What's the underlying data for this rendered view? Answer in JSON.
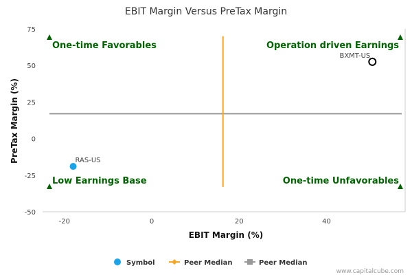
{
  "chart_data": {
    "type": "scatter",
    "title": "EBIT Margin Versus PreTax Margin",
    "xlabel": "EBIT Margin (%)",
    "ylabel": "PreTax Margin (%)",
    "xlim": [
      -25,
      58
    ],
    "ylim": [
      -50,
      75
    ],
    "x_ticks": [
      -20,
      0,
      20,
      40
    ],
    "y_ticks": [
      -50,
      -25,
      0,
      25,
      50,
      75
    ],
    "grid": false,
    "points": [
      {
        "label": "RAS-US",
        "x": -18,
        "y": -19,
        "style": "filled",
        "color": "#1aa3e8"
      },
      {
        "label": "BXMT-US",
        "x": 50.5,
        "y": 52.5,
        "style": "hollow",
        "color": "#000000"
      }
    ],
    "peer_median_x": 16.3,
    "peer_median_y": 17,
    "vline_y_range": [
      -33,
      70
    ],
    "quadrants": {
      "top_left": "One-time Favorables",
      "top_right": "Operation driven Earnings",
      "bottom_left": "Low Earnings Base",
      "bottom_right": "One-time Unfavorables"
    },
    "legend": {
      "placement": "bottom",
      "items": [
        {
          "label": "Symbol",
          "color": "#1aa3e8",
          "marker": "circle"
        },
        {
          "label": "Peer Median",
          "color": "#f5a623",
          "marker": "diamond-line"
        },
        {
          "label": "Peer Median",
          "color": "#999999",
          "marker": "square-line"
        }
      ]
    },
    "colors": {
      "quadrant_text": "#006400",
      "vline": "#f5a623",
      "hline": "#999999"
    }
  },
  "credit": "www.capitalcube.com"
}
